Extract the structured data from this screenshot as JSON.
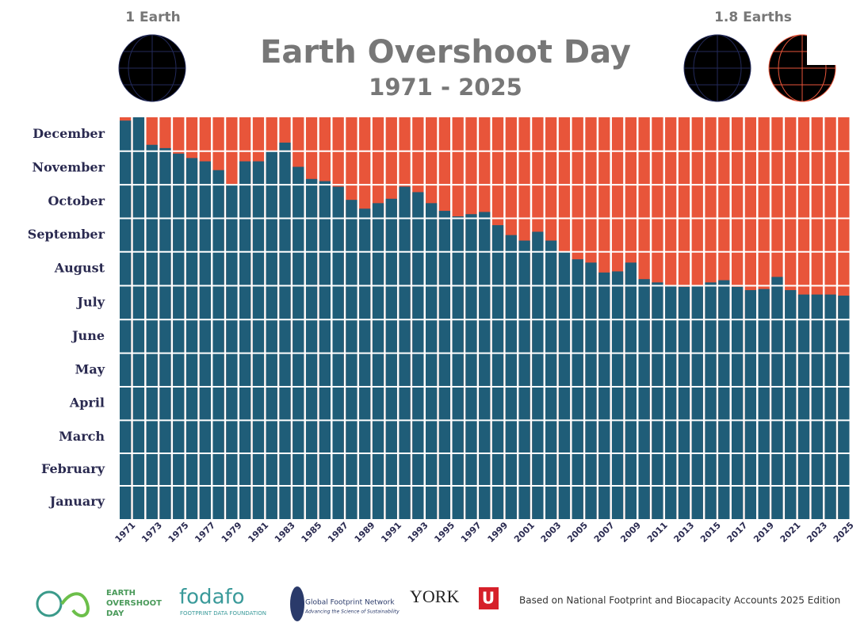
{
  "chart_data": {
    "type": "bar",
    "title": "Earth Overshoot Day",
    "subtitle": "1971 - 2025",
    "left_label": "1 Earth",
    "right_label": "1.8 Earths",
    "categories": [
      "1971",
      null,
      "1973",
      null,
      "1975",
      null,
      "1977",
      null,
      "1979",
      null,
      "1981",
      null,
      "1983",
      null,
      "1985",
      null,
      "1987",
      null,
      "1989",
      null,
      "1991",
      null,
      "1993",
      null,
      "1995",
      null,
      "1997",
      null,
      "1999",
      null,
      "2001",
      null,
      "2003",
      null,
      "2005",
      null,
      "2007",
      null,
      "2009",
      null,
      "2011",
      null,
      "2013",
      null,
      "2015",
      null,
      "2017",
      null,
      "2019",
      null,
      "2021",
      null,
      "2023",
      null,
      "2025"
    ],
    "values": [
      362,
      365,
      340,
      337,
      332,
      328,
      325,
      317,
      304,
      325,
      325,
      334,
      342,
      320,
      309,
      307,
      302,
      290,
      282,
      287,
      291,
      302,
      297,
      287,
      280,
      275,
      277,
      279,
      267,
      258,
      253,
      261,
      253,
      243,
      236,
      233,
      224,
      225,
      233,
      218,
      215,
      212,
      211,
      212,
      215,
      217,
      211,
      208,
      209,
      220,
      208,
      204,
      204,
      204,
      203
    ],
    "color": "#1f5d78",
    "background_color": "#e8553a",
    "ylim": [
      0,
      365
    ],
    "yticks": [
      {
        "value": 15.5,
        "label": "January"
      },
      {
        "value": 45,
        "label": "February"
      },
      {
        "value": 74.5,
        "label": "March"
      },
      {
        "value": 105,
        "label": "April"
      },
      {
        "value": 135.5,
        "label": "May"
      },
      {
        "value": 166,
        "label": "June"
      },
      {
        "value": 196.5,
        "label": "July"
      },
      {
        "value": 227.5,
        "label": "August"
      },
      {
        "value": 258,
        "label": "September"
      },
      {
        "value": 288.5,
        "label": "October"
      },
      {
        "value": 319,
        "label": "November"
      },
      {
        "value": 349.5,
        "label": "December"
      }
    ]
  },
  "footer": {
    "logo1": [
      "EARTH",
      "OVERSHOOT",
      "DAY"
    ],
    "logo2": "fodafo",
    "logo2_sub": "FOOTPRINT DATA FOUNDATION",
    "logo3": "Global Footprint Network",
    "logo3_sub": "Advancing the Science of Sustainability",
    "logo4": "YORK",
    "logo4_mark": "U",
    "note": "Based on National Footprint and Biocapacity Accounts 2025 Edition"
  }
}
